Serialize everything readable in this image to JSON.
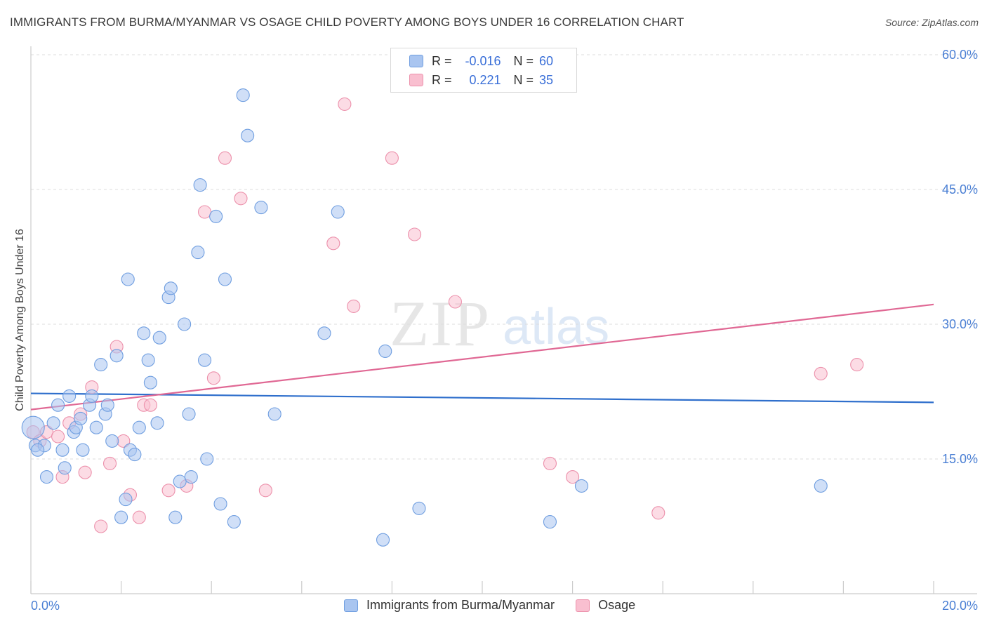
{
  "title": "IMMIGRANTS FROM BURMA/MYANMAR VS OSAGE CHILD POVERTY AMONG BOYS UNDER 16 CORRELATION CHART",
  "source": "Source: ZipAtlas.com",
  "watermark": {
    "zip": "ZIP",
    "atlas": "atlas"
  },
  "legend": {
    "r_label": "R =",
    "n_label": "N =",
    "rows": [
      {
        "name": "Immigrants from Burma/Myanmar",
        "r": "-0.016",
        "n": "60",
        "fill": "#a9c5f0",
        "stroke": "#6f9ee0"
      },
      {
        "name": "Osage",
        "r": "0.221",
        "n": "35",
        "fill": "#f9bfd0",
        "stroke": "#ec90ab"
      }
    ]
  },
  "colors": {
    "blue_line": "#2f6fcc",
    "pink_line": "#e06894",
    "axis_text": "#4a7fd4",
    "grid": "#dddddd"
  },
  "chart_data": {
    "type": "scatter",
    "title": "IMMIGRANTS FROM BURMA/MYANMAR VS OSAGE CHILD POVERTY AMONG BOYS UNDER 16 CORRELATION CHART",
    "xlabel": "",
    "ylabel": "Child Poverty Among Boys Under 16",
    "xlim": [
      0,
      20
    ],
    "ylim": [
      0,
      60
    ],
    "x_tick_labels": [
      "0.0%",
      "20.0%"
    ],
    "y_ticks": [
      15,
      30,
      45,
      60
    ],
    "y_tick_labels": [
      "15.0%",
      "30.0%",
      "45.0%",
      "60.0%"
    ],
    "series": [
      {
        "name": "Immigrants from Burma/Myanmar",
        "trend": [
          [
            0,
            22.3
          ],
          [
            20,
            21.3
          ]
        ],
        "points": [
          [
            0.05,
            18.5
          ],
          [
            0.1,
            16.5
          ],
          [
            0.3,
            16.5
          ],
          [
            0.35,
            13.0
          ],
          [
            0.5,
            19.0
          ],
          [
            0.6,
            21.0
          ],
          [
            0.7,
            16.0
          ],
          [
            0.75,
            14.0
          ],
          [
            0.85,
            22.0
          ],
          [
            0.95,
            18.0
          ],
          [
            1.0,
            18.5
          ],
          [
            1.1,
            19.5
          ],
          [
            1.15,
            16.0
          ],
          [
            1.3,
            21.0
          ],
          [
            1.35,
            22.0
          ],
          [
            1.45,
            18.5
          ],
          [
            1.55,
            25.5
          ],
          [
            1.65,
            20.0
          ],
          [
            1.7,
            21.0
          ],
          [
            1.8,
            17.0
          ],
          [
            1.9,
            26.5
          ],
          [
            2.0,
            8.5
          ],
          [
            2.1,
            10.5
          ],
          [
            2.15,
            35.0
          ],
          [
            2.2,
            16.0
          ],
          [
            2.3,
            15.5
          ],
          [
            2.4,
            18.5
          ],
          [
            2.5,
            29.0
          ],
          [
            2.6,
            26.0
          ],
          [
            2.65,
            23.5
          ],
          [
            2.8,
            19.0
          ],
          [
            2.85,
            28.5
          ],
          [
            3.05,
            33.0
          ],
          [
            3.1,
            34.0
          ],
          [
            3.2,
            8.5
          ],
          [
            3.3,
            12.5
          ],
          [
            3.4,
            30.0
          ],
          [
            3.5,
            20.0
          ],
          [
            3.55,
            13.0
          ],
          [
            3.7,
            38.0
          ],
          [
            3.75,
            45.5
          ],
          [
            3.85,
            26.0
          ],
          [
            3.9,
            15.0
          ],
          [
            4.1,
            42.0
          ],
          [
            4.2,
            10.0
          ],
          [
            4.3,
            35.0
          ],
          [
            4.5,
            8.0
          ],
          [
            4.7,
            55.5
          ],
          [
            4.8,
            51.0
          ],
          [
            5.1,
            43.0
          ],
          [
            5.4,
            20.0
          ],
          [
            6.5,
            29.0
          ],
          [
            6.8,
            42.5
          ],
          [
            7.8,
            6.0
          ],
          [
            7.85,
            27.0
          ],
          [
            8.6,
            9.5
          ],
          [
            11.5,
            8.0
          ],
          [
            12.2,
            12.0
          ],
          [
            17.5,
            12.0
          ],
          [
            0.15,
            16.0
          ]
        ]
      },
      {
        "name": "Osage",
        "trend": [
          [
            0,
            20.5
          ],
          [
            20,
            32.2
          ]
        ],
        "points": [
          [
            0.05,
            18.0
          ],
          [
            0.2,
            17.0
          ],
          [
            0.35,
            18.0
          ],
          [
            0.6,
            17.5
          ],
          [
            0.7,
            13.0
          ],
          [
            0.85,
            19.0
          ],
          [
            1.1,
            20.0
          ],
          [
            1.2,
            13.5
          ],
          [
            1.35,
            23.0
          ],
          [
            1.55,
            7.5
          ],
          [
            1.75,
            14.5
          ],
          [
            1.9,
            27.5
          ],
          [
            2.05,
            17.0
          ],
          [
            2.2,
            11.0
          ],
          [
            2.4,
            8.5
          ],
          [
            2.5,
            21.0
          ],
          [
            2.65,
            21.0
          ],
          [
            3.05,
            11.5
          ],
          [
            3.45,
            12.0
          ],
          [
            3.85,
            42.5
          ],
          [
            4.05,
            24.0
          ],
          [
            4.3,
            48.5
          ],
          [
            4.65,
            44.0
          ],
          [
            5.2,
            11.5
          ],
          [
            6.7,
            39.0
          ],
          [
            6.95,
            54.5
          ],
          [
            7.15,
            32.0
          ],
          [
            8.0,
            48.5
          ],
          [
            8.5,
            40.0
          ],
          [
            9.4,
            32.5
          ],
          [
            11.5,
            14.5
          ],
          [
            12.0,
            13.0
          ],
          [
            13.9,
            9.0
          ],
          [
            17.5,
            24.5
          ],
          [
            18.3,
            25.5
          ]
        ]
      }
    ]
  }
}
